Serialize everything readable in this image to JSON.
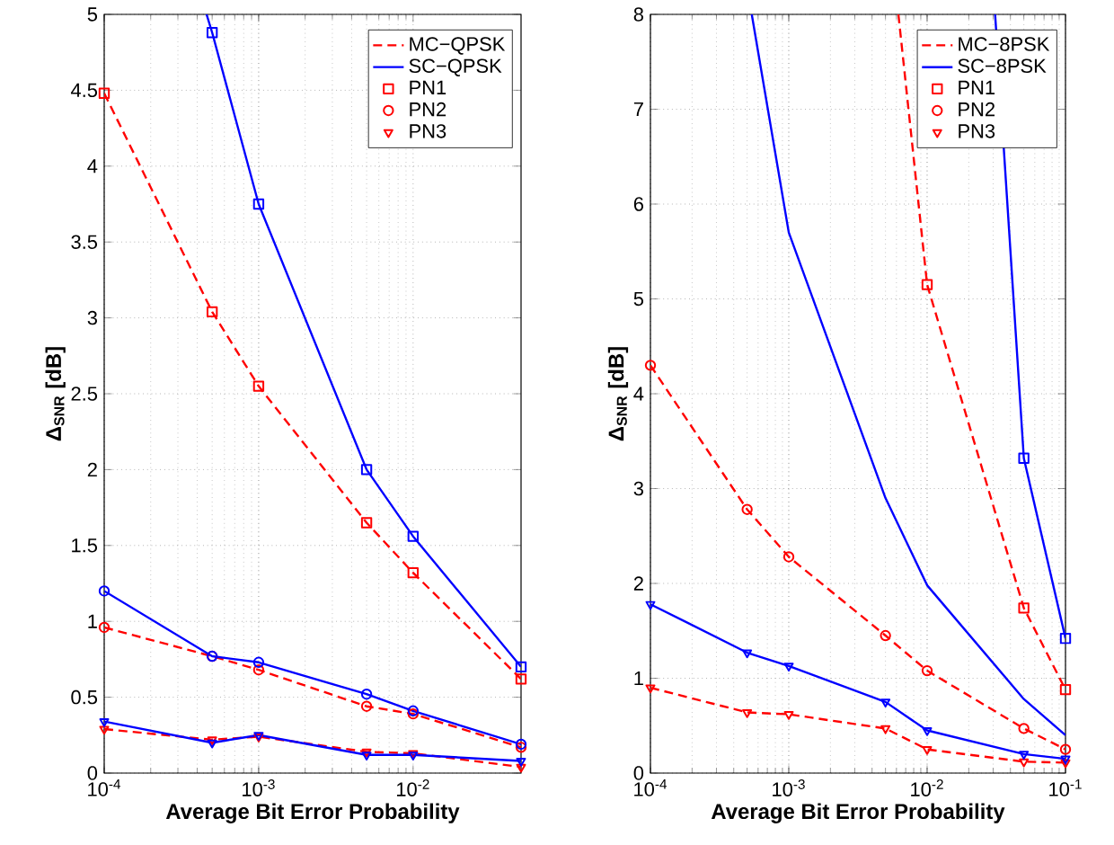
{
  "chart_data": [
    {
      "type": "line",
      "xlabel": "Average Bit Error Probability",
      "ylabel": "Δ$_{SNR}$ [dB]",
      "log": "x",
      "grid": true,
      "legend": "top right",
      "x": [
        0.0001,
        0.0005,
        0.001,
        0.005,
        0.01,
        0.05
      ],
      "xlim": [
        0.0001,
        0.05
      ],
      "ylim": [
        0,
        5
      ],
      "xticks": [
        {
          "value": 0.0001,
          "label": "10$^{-4}$"
        },
        {
          "value": 0.001,
          "label": "10$^{-3}$"
        },
        {
          "value": 0.01,
          "label": "10$^{-2}$"
        }
      ],
      "yticks": [
        0,
        0.5,
        1,
        1.5,
        2,
        2.5,
        3,
        3.5,
        4,
        4.5,
        5
      ],
      "series": [
        {
          "color": "#ff0000",
          "line_style": "dashed",
          "marker": "square",
          "values": [
            4.48,
            3.04,
            2.55,
            1.65,
            1.32,
            0.62
          ]
        },
        {
          "color": "#0000ff",
          "line_style": "solid",
          "marker": "none",
          "x": [
            0.00046,
            0.0005,
            0.001,
            0.005,
            0.01,
            0.05
          ],
          "values": [
            5,
            4.88,
            3.75,
            2.0,
            1.56,
            0.7
          ]
        },
        {
          "color": "#0000ff",
          "type": "scatter",
          "marker": "square",
          "x": [
            0.0005,
            0.001,
            0.005,
            0.01,
            0.05
          ],
          "values": [
            4.88,
            3.75,
            2.0,
            1.56,
            0.7
          ]
        },
        {
          "color": "#ff0000",
          "line_style": "dashed",
          "marker": "circle",
          "values": [
            0.96,
            0.77,
            0.68,
            0.44,
            0.39,
            0.17
          ]
        },
        {
          "color": "#0000ff",
          "line_style": "solid",
          "marker": "circle",
          "values": [
            1.2,
            0.77,
            0.73,
            0.52,
            0.41,
            0.19
          ]
        },
        {
          "color": "#ff0000",
          "line_style": "dashed",
          "marker": "triangle",
          "values": [
            0.29,
            0.22,
            0.24,
            0.14,
            0.13,
            0.04
          ]
        },
        {
          "color": "#0000ff",
          "line_style": "solid",
          "marker": "triangle",
          "values": [
            0.34,
            0.2,
            0.25,
            0.12,
            0.12,
            0.08
          ]
        },
        {
          "name": "MC−QPSK",
          "color": "#ff0000",
          "line_style": "dashed",
          "marker": "none",
          "values": [
            null,
            null,
            null,
            null,
            null,
            null
          ]
        },
        {
          "name": "SC−QPSK",
          "color": "#0000ff",
          "line_style": "solid",
          "marker": "none",
          "values": [
            null,
            null,
            null,
            null,
            null,
            null
          ]
        },
        {
          "name": "PN1",
          "color": "#ff0000",
          "type": "scatter",
          "marker": "square",
          "values": [
            null,
            null,
            null,
            null,
            null,
            null
          ]
        },
        {
          "name": "PN2",
          "color": "#ff0000",
          "type": "scatter",
          "marker": "circle",
          "values": [
            null,
            null,
            null,
            null,
            null,
            null
          ]
        },
        {
          "name": "PN3",
          "color": "#ff0000",
          "type": "scatter",
          "marker": "triangle",
          "values": [
            null,
            null,
            null,
            null,
            null,
            null
          ]
        }
      ]
    },
    {
      "type": "line",
      "xlabel": "Average Bit Error Probability",
      "ylabel": "Δ$_{SNR}$ [dB]",
      "log": "x",
      "grid": true,
      "legend": "top right",
      "x": [
        0.0001,
        0.0005,
        0.001,
        0.005,
        0.01,
        0.05,
        0.1
      ],
      "xlim": [
        0.0001,
        0.1
      ],
      "ylim": [
        0,
        8
      ],
      "xticks": [
        {
          "value": 0.0001,
          "label": "10$^{-4}$"
        },
        {
          "value": 0.001,
          "label": "10$^{-3}$"
        },
        {
          "value": 0.01,
          "label": "10$^{-2}$"
        },
        {
          "value": 0.1,
          "label": "10$^{-1}$"
        }
      ],
      "yticks": [
        0,
        1,
        2,
        3,
        4,
        5,
        6,
        7,
        8
      ],
      "series": [
        {
          "color": "#ff0000",
          "line_style": "dashed",
          "marker": "none",
          "x": [
            0.0062,
            0.01,
            0.05,
            0.1
          ],
          "values": [
            8,
            5.15,
            1.74,
            0.88
          ]
        },
        {
          "color": "#ff0000",
          "type": "scatter",
          "marker": "square",
          "x": [
            0.01,
            0.05,
            0.1
          ],
          "values": [
            5.15,
            1.74,
            0.88
          ]
        },
        {
          "color": "#0000ff",
          "line_style": "solid",
          "marker": "none",
          "x": [
            0.031,
            0.05,
            0.1
          ],
          "values": [
            8,
            3.32,
            1.42
          ]
        },
        {
          "color": "#0000ff",
          "type": "scatter",
          "marker": "square",
          "x": [
            0.05,
            0.1
          ],
          "values": [
            3.32,
            1.42
          ]
        },
        {
          "color": "#ff0000",
          "line_style": "dashed",
          "marker": "circle",
          "values": [
            4.3,
            2.78,
            2.28,
            1.45,
            1.08,
            0.47,
            0.25
          ]
        },
        {
          "color": "#0000ff",
          "line_style": "solid",
          "marker": "none",
          "x": [
            0.00054,
            0.001,
            0.005,
            0.01,
            0.05,
            0.1
          ],
          "values": [
            8,
            5.7,
            2.9,
            1.98,
            0.78,
            0.4
          ]
        },
        {
          "color": "#ff0000",
          "line_style": "dashed",
          "marker": "triangle",
          "values": [
            0.9,
            0.64,
            0.62,
            0.47,
            0.25,
            0.12,
            0.11
          ]
        },
        {
          "color": "#0000ff",
          "line_style": "solid",
          "marker": "triangle",
          "values": [
            1.78,
            1.27,
            1.13,
            0.75,
            0.45,
            0.2,
            0.15
          ]
        },
        {
          "name": "MC−8PSK",
          "color": "#ff0000",
          "line_style": "dashed",
          "marker": "none",
          "values": [
            null,
            null,
            null,
            null,
            null,
            null,
            null
          ]
        },
        {
          "name": "SC−8PSK",
          "color": "#0000ff",
          "line_style": "solid",
          "marker": "none",
          "values": [
            null,
            null,
            null,
            null,
            null,
            null,
            null
          ]
        },
        {
          "name": "PN1",
          "color": "#ff0000",
          "type": "scatter",
          "marker": "square",
          "values": [
            null,
            null,
            null,
            null,
            null,
            null,
            null
          ]
        },
        {
          "name": "PN2",
          "color": "#ff0000",
          "type": "scatter",
          "marker": "circle",
          "values": [
            null,
            null,
            null,
            null,
            null,
            null,
            null
          ]
        },
        {
          "name": "PN3",
          "color": "#ff0000",
          "type": "scatter",
          "marker": "triangle",
          "values": [
            null,
            null,
            null,
            null,
            null,
            null,
            null
          ]
        }
      ]
    }
  ]
}
